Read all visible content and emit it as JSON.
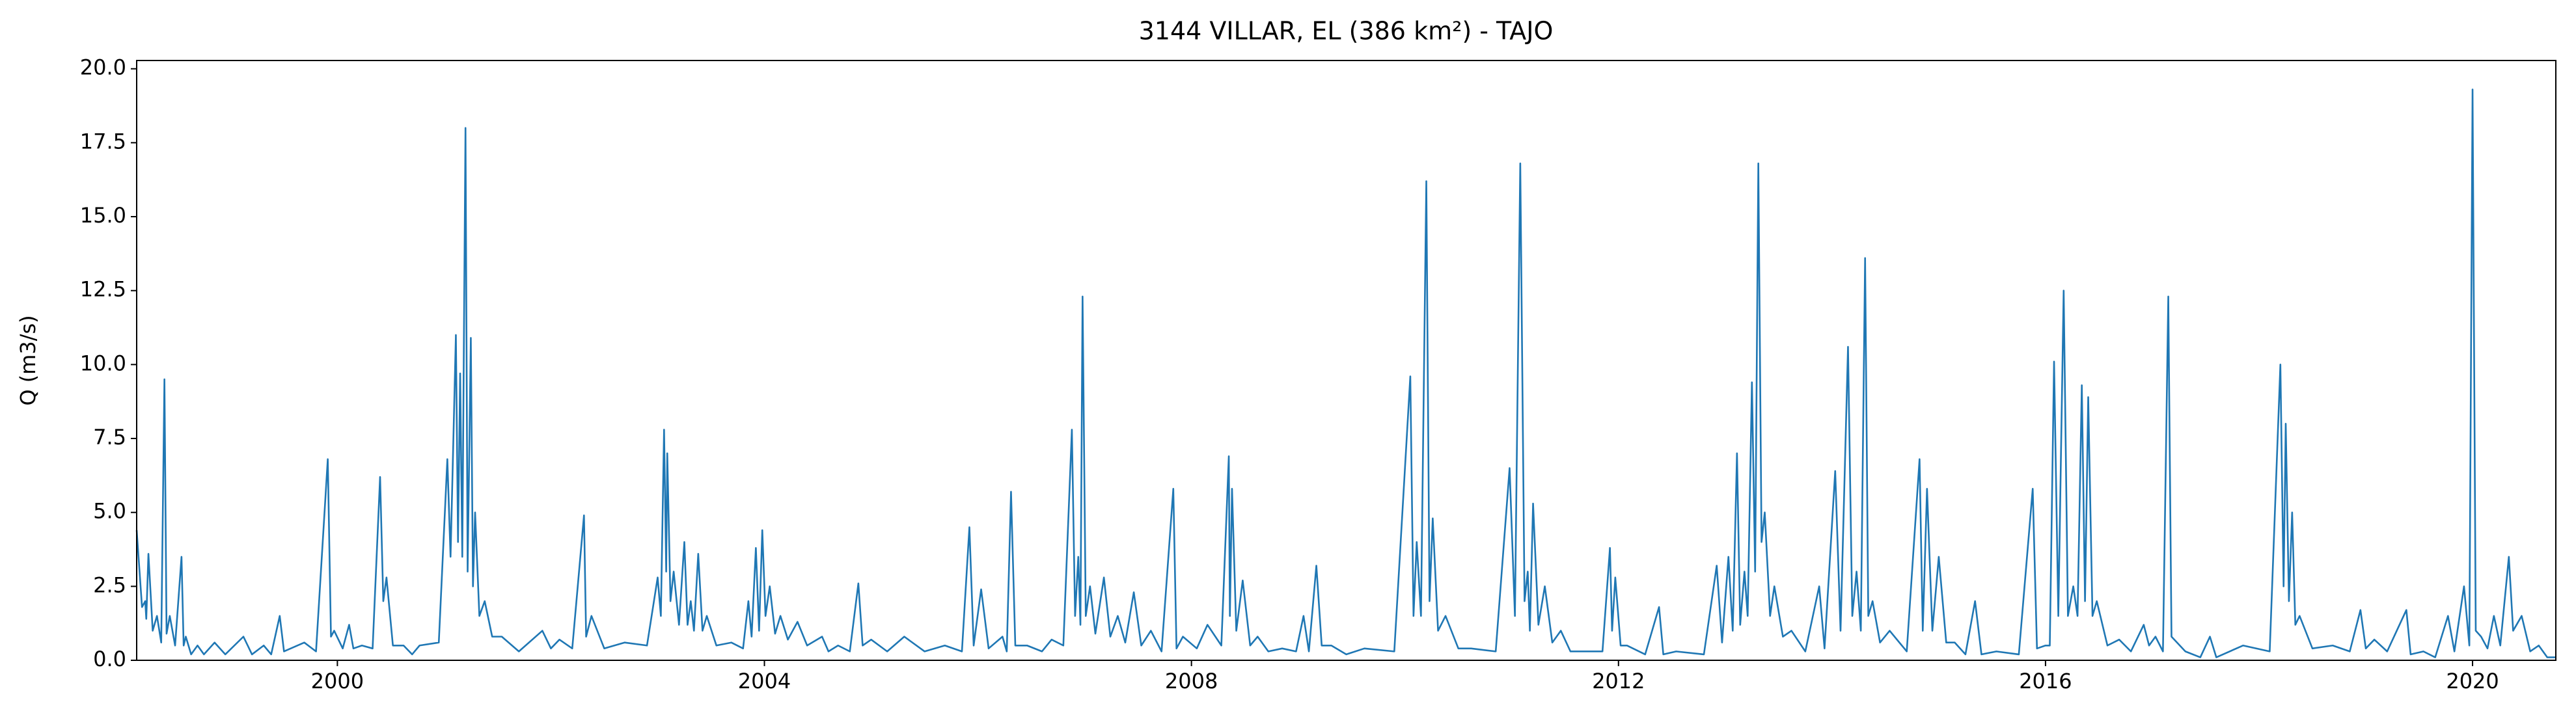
{
  "chart_data": {
    "type": "line",
    "title": "3144 VILLAR, EL (386 km²) - TAJO",
    "y_label": "Q (m3/s)",
    "color": "#1f77b4",
    "xlim": [
      1998.12,
      2020.78
    ],
    "ylim": [
      0,
      20.28
    ],
    "xticks": [
      2000,
      2004,
      2008,
      2012,
      2016,
      2020
    ],
    "yticks": [
      {
        "value": 0,
        "label": "0.0"
      },
      2.5,
      {
        "value": 5,
        "label": "5.0"
      },
      7.5,
      {
        "value": 10,
        "label": "10.0"
      },
      12.5,
      {
        "value": 15,
        "label": "15.0"
      },
      17.5,
      {
        "value": 20,
        "label": "20.0"
      }
    ],
    "grid": false,
    "x": [
      1998.12,
      1998.17,
      1998.2,
      1998.21,
      1998.23,
      1998.27,
      1998.31,
      1998.35,
      1998.38,
      1998.4,
      1998.43,
      1998.48,
      1998.54,
      1998.56,
      1998.58,
      1998.63,
      1998.69,
      1998.75,
      1998.85,
      1998.95,
      1999.12,
      1999.2,
      1999.31,
      1999.38,
      1999.46,
      1999.5,
      1999.69,
      1999.8,
      1999.91,
      1999.94,
      1999.97,
      2000.05,
      2000.11,
      2000.15,
      2000.23,
      2000.33,
      2000.4,
      2000.43,
      2000.46,
      2000.52,
      2000.62,
      2000.7,
      2000.77,
      2000.95,
      2001.03,
      2001.06,
      2001.11,
      2001.13,
      2001.15,
      2001.17,
      2001.2,
      2001.22,
      2001.25,
      2001.27,
      2001.29,
      2001.33,
      2001.38,
      2001.45,
      2001.54,
      2001.7,
      2001.92,
      2002.0,
      2002.08,
      2002.2,
      2002.31,
      2002.33,
      2002.38,
      2002.5,
      2002.69,
      2002.9,
      2003.0,
      2003.03,
      2003.06,
      2003.08,
      2003.09,
      2003.12,
      2003.15,
      2003.2,
      2003.25,
      2003.28,
      2003.31,
      2003.34,
      2003.38,
      2003.42,
      2003.46,
      2003.55,
      2003.69,
      2003.8,
      2003.85,
      2003.88,
      2003.92,
      2003.95,
      2003.98,
      2004.01,
      2004.05,
      2004.1,
      2004.15,
      2004.22,
      2004.31,
      2004.4,
      2004.54,
      2004.6,
      2004.69,
      2004.8,
      2004.88,
      2004.92,
      2005.0,
      2005.15,
      2005.31,
      2005.5,
      2005.69,
      2005.85,
      2005.92,
      2005.96,
      2006.03,
      2006.1,
      2006.23,
      2006.27,
      2006.31,
      2006.35,
      2006.46,
      2006.6,
      2006.69,
      2006.8,
      2006.88,
      2006.91,
      2006.94,
      2006.96,
      2006.98,
      2007.01,
      2007.05,
      2007.1,
      2007.18,
      2007.24,
      2007.31,
      2007.38,
      2007.46,
      2007.53,
      2007.62,
      2007.72,
      2007.83,
      2007.86,
      2007.92,
      2008.05,
      2008.15,
      2008.28,
      2008.35,
      2008.36,
      2008.38,
      2008.42,
      2008.48,
      2008.55,
      2008.62,
      2008.72,
      2008.85,
      2008.98,
      2009.05,
      2009.1,
      2009.17,
      2009.22,
      2009.31,
      2009.45,
      2009.62,
      2009.9,
      2010.05,
      2010.08,
      2010.11,
      2010.15,
      2010.2,
      2010.23,
      2010.26,
      2010.31,
      2010.38,
      2010.5,
      2010.62,
      2010.85,
      2010.98,
      2011.03,
      2011.08,
      2011.12,
      2011.15,
      2011.17,
      2011.2,
      2011.25,
      2011.31,
      2011.38,
      2011.46,
      2011.55,
      2011.69,
      2011.85,
      2011.92,
      2011.94,
      2011.97,
      2012.02,
      2012.08,
      2012.25,
      2012.38,
      2012.42,
      2012.54,
      2012.8,
      2012.92,
      2012.97,
      2013.03,
      2013.07,
      2013.11,
      2013.14,
      2013.18,
      2013.21,
      2013.25,
      2013.28,
      2013.31,
      2013.34,
      2013.37,
      2013.42,
      2013.46,
      2013.54,
      2013.62,
      2013.75,
      2013.88,
      2013.93,
      2014.03,
      2014.08,
      2014.15,
      2014.19,
      2014.23,
      2014.27,
      2014.31,
      2014.34,
      2014.38,
      2014.45,
      2014.54,
      2014.7,
      2014.82,
      2014.85,
      2014.89,
      2014.94,
      2015.0,
      2015.07,
      2015.15,
      2015.25,
      2015.34,
      2015.4,
      2015.54,
      2015.75,
      2015.88,
      2015.92,
      2016.0,
      2016.04,
      2016.08,
      2016.12,
      2016.17,
      2016.21,
      2016.26,
      2016.3,
      2016.34,
      2016.37,
      2016.4,
      2016.44,
      2016.48,
      2016.58,
      2016.69,
      2016.8,
      2016.92,
      2016.97,
      2017.03,
      2017.1,
      2017.15,
      2017.18,
      2017.31,
      2017.45,
      2017.54,
      2017.6,
      2017.85,
      2018.1,
      2018.2,
      2018.23,
      2018.25,
      2018.28,
      2018.31,
      2018.34,
      2018.38,
      2018.5,
      2018.69,
      2018.85,
      2018.95,
      2019.0,
      2019.08,
      2019.2,
      2019.38,
      2019.42,
      2019.54,
      2019.65,
      2019.77,
      2019.83,
      2019.92,
      2019.97,
      2020.0,
      2020.03,
      2020.08,
      2020.14,
      2020.2,
      2020.26,
      2020.34,
      2020.38,
      2020.46,
      2020.54,
      2020.62,
      2020.7,
      2020.78
    ],
    "values": [
      4.4,
      1.8,
      2.0,
      1.4,
      3.6,
      1.0,
      1.5,
      0.6,
      9.5,
      0.9,
      1.5,
      0.5,
      3.5,
      0.5,
      0.8,
      0.2,
      0.5,
      0.2,
      0.6,
      0.2,
      0.8,
      0.2,
      0.5,
      0.2,
      1.5,
      0.3,
      0.6,
      0.3,
      6.8,
      0.8,
      1.0,
      0.4,
      1.2,
      0.4,
      0.5,
      0.4,
      6.2,
      2.0,
      2.8,
      0.5,
      0.5,
      0.2,
      0.5,
      0.6,
      6.8,
      3.5,
      11.0,
      4.0,
      9.7,
      3.5,
      18.0,
      3.0,
      10.9,
      2.5,
      5.0,
      1.5,
      2.0,
      0.8,
      0.8,
      0.3,
      1.0,
      0.4,
      0.7,
      0.4,
      4.9,
      0.8,
      1.5,
      0.4,
      0.6,
      0.5,
      2.8,
      1.5,
      7.8,
      3.0,
      7.0,
      2.0,
      3.0,
      1.2,
      4.0,
      1.2,
      2.0,
      1.0,
      3.6,
      1.0,
      1.5,
      0.5,
      0.6,
      0.4,
      2.0,
      0.8,
      3.8,
      1.0,
      4.4,
      1.5,
      2.5,
      0.9,
      1.5,
      0.7,
      1.3,
      0.5,
      0.8,
      0.3,
      0.5,
      0.3,
      2.6,
      0.5,
      0.7,
      0.3,
      0.8,
      0.3,
      0.5,
      0.3,
      4.5,
      0.5,
      2.4,
      0.4,
      0.8,
      0.3,
      5.7,
      0.5,
      0.5,
      0.3,
      0.7,
      0.5,
      7.8,
      1.5,
      3.5,
      1.2,
      12.3,
      1.5,
      2.5,
      0.9,
      2.8,
      0.8,
      1.5,
      0.6,
      2.3,
      0.5,
      1.0,
      0.3,
      5.8,
      0.4,
      0.8,
      0.4,
      1.2,
      0.5,
      6.9,
      1.5,
      5.8,
      1.0,
      2.7,
      0.5,
      0.8,
      0.3,
      0.4,
      0.3,
      1.5,
      0.3,
      3.2,
      0.5,
      0.5,
      0.2,
      0.4,
      0.3,
      9.6,
      1.5,
      4.0,
      1.5,
      16.2,
      2.0,
      4.8,
      1.0,
      1.5,
      0.4,
      0.4,
      0.3,
      6.5,
      1.5,
      16.8,
      2.0,
      3.0,
      1.0,
      5.3,
      1.2,
      2.5,
      0.6,
      1.0,
      0.3,
      0.3,
      0.3,
      3.8,
      1.0,
      2.8,
      0.5,
      0.5,
      0.2,
      1.8,
      0.2,
      0.3,
      0.2,
      3.2,
      0.6,
      3.5,
      1.0,
      7.0,
      1.2,
      3.0,
      1.5,
      9.4,
      3.0,
      16.8,
      4.0,
      5.0,
      1.5,
      2.5,
      0.8,
      1.0,
      0.3,
      2.5,
      0.4,
      6.4,
      1.0,
      10.6,
      1.5,
      3.0,
      1.0,
      13.6,
      1.5,
      2.0,
      0.6,
      1.0,
      0.3,
      6.8,
      1.0,
      5.8,
      1.0,
      3.5,
      0.6,
      0.6,
      0.2,
      2.0,
      0.2,
      0.3,
      0.2,
      5.8,
      0.4,
      0.5,
      0.5,
      10.1,
      1.5,
      12.5,
      1.5,
      2.5,
      1.5,
      9.3,
      2.0,
      8.9,
      1.5,
      2.0,
      0.5,
      0.7,
      0.3,
      1.2,
      0.5,
      0.8,
      0.3,
      12.3,
      0.8,
      0.3,
      0.1,
      0.8,
      0.1,
      0.5,
      0.3,
      10.0,
      2.5,
      8.0,
      2.0,
      5.0,
      1.2,
      1.5,
      0.4,
      0.5,
      0.3,
      1.7,
      0.4,
      0.7,
      0.3,
      1.7,
      0.2,
      0.3,
      0.1,
      1.5,
      0.3,
      2.5,
      0.5,
      19.3,
      1.0,
      0.8,
      0.4,
      1.5,
      0.5,
      3.5,
      1.0,
      1.5,
      0.3,
      0.5,
      0.1,
      0.1
    ]
  }
}
